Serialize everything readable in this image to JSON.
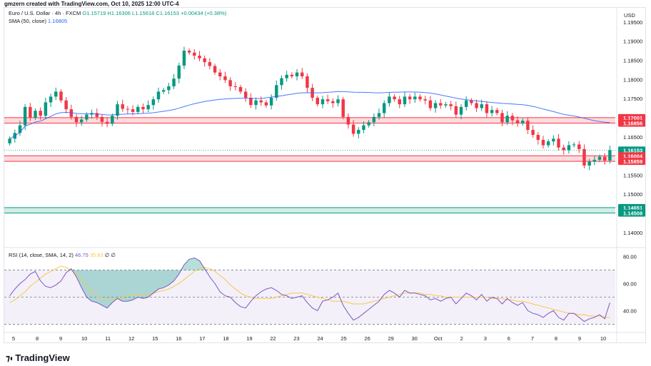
{
  "header": {
    "creator_line": "gmzern created with TradingView.com, Oct 10, 2025 12:00 UTC-4"
  },
  "legend": {
    "symbol": "Euro / U.S. Dollar · 4h · FXCM",
    "o": "O1.15719",
    "h": "H1.16306",
    "l": "L1.15618",
    "c": "C1.16153",
    "chg": "+0.00434 (+0.38%)",
    "sma_label": "SMA (50, close)",
    "sma_value": "1.16805",
    "rsi_label": "RSI (14, close, SMA, 14, 2)",
    "rsi_value": "46.75",
    "rsi_ma_value": "35.83",
    "rsi_extra": "∅ ∅"
  },
  "currency": "USD",
  "logo": {
    "text": "TradingView",
    "icon": "tradingview-logo-icon"
  },
  "colors": {
    "up": "#089981",
    "down": "#f23645",
    "sma": "#2962ff",
    "rsi": "#7e57c2",
    "rsi_ma": "#f7c948",
    "resist_zone": "#f23645",
    "support_zone": "#089981"
  },
  "chart_data": [
    {
      "type": "candlestick",
      "x_tick_labels": [
        "5",
        "8",
        "9",
        "10",
        "11",
        "12",
        "15",
        "16",
        "17",
        "18",
        "19",
        "22",
        "23",
        "24",
        "25",
        "26",
        "29",
        "30",
        "Oct",
        "2",
        "3",
        "6",
        "7",
        "8",
        "9",
        "10"
      ],
      "y_ticks": [
        1.195,
        1.19,
        1.185,
        1.18,
        1.175,
        1.17,
        1.165,
        1.16,
        1.155,
        1.15,
        1.145,
        1.14
      ],
      "y_tick_labels": [
        "1.19500",
        "1.19000",
        "1.18500",
        "1.18000",
        "1.17500",
        "1.17000",
        "1.16500",
        "1.16000",
        "1.15500",
        "1.15000",
        "1.14500",
        "1.14000"
      ],
      "ylim": [
        1.137,
        1.1985
      ],
      "close": [
        1.1645,
        1.166,
        1.168,
        1.1728,
        1.17,
        1.1718,
        1.1705,
        1.174,
        1.1755,
        1.1768,
        1.1745,
        1.1722,
        1.1702,
        1.1688,
        1.1695,
        1.1708,
        1.1712,
        1.1702,
        1.1689,
        1.1684,
        1.1705,
        1.1735,
        1.1723,
        1.1722,
        1.1715,
        1.1728,
        1.1722,
        1.1733,
        1.1748,
        1.1768,
        1.1772,
        1.1782,
        1.1802,
        1.1836,
        1.1875,
        1.187,
        1.1862,
        1.1855,
        1.1845,
        1.1835,
        1.1818,
        1.1808,
        1.1798,
        1.1782,
        1.178,
        1.1768,
        1.1752,
        1.1733,
        1.1745,
        1.174,
        1.1732,
        1.1752,
        1.1785,
        1.1803,
        1.1812,
        1.1808,
        1.1818,
        1.1808,
        1.1778,
        1.1752,
        1.1735,
        1.1748,
        1.1743,
        1.1738,
        1.1748,
        1.1702,
        1.1682,
        1.1658,
        1.1668,
        1.168,
        1.1688,
        1.1702,
        1.1712,
        1.1738,
        1.1755,
        1.1748,
        1.1735,
        1.1755,
        1.1748,
        1.1755,
        1.1748,
        1.1745,
        1.1725,
        1.1738,
        1.1732,
        1.1735,
        1.173,
        1.1708,
        1.1728,
        1.1745,
        1.1738,
        1.1725,
        1.1735,
        1.1712,
        1.172,
        1.1712,
        1.1688,
        1.1705,
        1.1693,
        1.1685,
        1.1692,
        1.1668,
        1.1655,
        1.1642,
        1.1628,
        1.1638,
        1.1645,
        1.1622,
        1.1615,
        1.1628,
        1.163,
        1.1618,
        1.1575,
        1.1585,
        1.159,
        1.1598,
        1.1588,
        1.1615
      ],
      "sma_value": 1.16805,
      "price_tags": [
        {
          "label": "1.17001",
          "value": 1.17001,
          "kind": "resist"
        },
        {
          "label": "1.16856",
          "value": 1.16856,
          "kind": "resist"
        },
        {
          "label": "1.16153",
          "value": 1.16153,
          "kind": "last"
        },
        {
          "label": "59:47",
          "value": 1.15985,
          "kind": "last"
        },
        {
          "label": "1.16004",
          "value": 1.16004,
          "kind": "resist"
        },
        {
          "label": "1.15859",
          "value": 1.15859,
          "kind": "resist"
        },
        {
          "label": "1.14651",
          "value": 1.14651,
          "kind": "support"
        },
        {
          "label": "1.14508",
          "value": 1.14508,
          "kind": "support"
        }
      ],
      "zones": [
        {
          "top": 1.17001,
          "bottom": 1.16856,
          "kind": "resist"
        },
        {
          "top": 1.16004,
          "bottom": 1.15859,
          "kind": "resist"
        },
        {
          "top": 1.14651,
          "bottom": 1.14508,
          "kind": "support"
        }
      ]
    },
    {
      "type": "line",
      "name": "RSI",
      "y_ticks": [
        80,
        60,
        40
      ],
      "y_tick_labels": [
        "80.00",
        "60.00",
        "40.00"
      ],
      "ylim": [
        26,
        84
      ],
      "bands": [
        70,
        50,
        30
      ],
      "values": [
        51,
        56,
        60,
        63,
        67,
        69,
        62,
        58,
        57,
        59,
        62,
        68,
        71,
        65,
        57,
        50,
        47,
        46,
        44,
        42,
        46,
        49,
        47,
        47,
        48,
        50,
        49,
        50,
        53,
        56,
        57,
        59,
        62,
        67,
        74,
        78,
        79,
        77,
        71,
        65,
        60,
        54,
        51,
        50,
        46,
        43,
        42,
        47,
        51,
        54,
        56,
        57,
        55,
        52,
        51,
        49,
        50,
        51,
        46,
        42,
        40,
        47,
        48,
        50,
        53,
        44,
        38,
        33,
        35,
        38,
        41,
        44,
        47,
        52,
        55,
        53,
        50,
        55,
        53,
        53,
        52,
        51,
        48,
        49,
        47,
        49,
        50,
        45,
        49,
        53,
        51,
        48,
        52,
        47,
        50,
        49,
        45,
        49,
        46,
        44,
        46,
        40,
        38,
        37,
        35,
        38,
        40,
        35,
        33,
        38,
        38,
        35,
        32,
        34,
        35,
        37,
        34,
        46
      ],
      "ma_values": [
        46,
        48,
        51,
        54,
        58,
        61,
        64,
        67,
        69,
        71,
        73,
        72,
        70,
        67,
        63,
        58,
        54,
        51,
        49,
        48,
        48,
        49,
        50,
        51,
        52,
        52,
        52,
        52,
        53,
        54,
        55,
        56,
        58,
        60,
        63,
        66,
        69,
        71,
        72,
        71,
        69,
        66,
        63,
        59,
        56,
        53,
        51,
        50,
        49,
        49,
        49,
        49,
        50,
        51,
        52,
        53,
        53,
        53,
        52,
        51,
        50,
        49,
        48,
        47,
        47,
        47,
        46,
        45,
        45,
        45,
        46,
        47,
        48,
        49,
        50,
        51,
        52,
        53,
        53,
        53,
        53,
        52,
        52,
        51,
        51,
        50,
        50,
        50,
        50,
        50,
        50,
        50,
        50,
        50,
        49,
        49,
        49,
        48,
        48,
        47,
        47,
        46,
        45,
        44,
        43,
        42,
        41,
        40,
        39,
        38,
        38,
        37,
        37,
        36,
        36,
        36,
        35,
        35
      ]
    }
  ]
}
